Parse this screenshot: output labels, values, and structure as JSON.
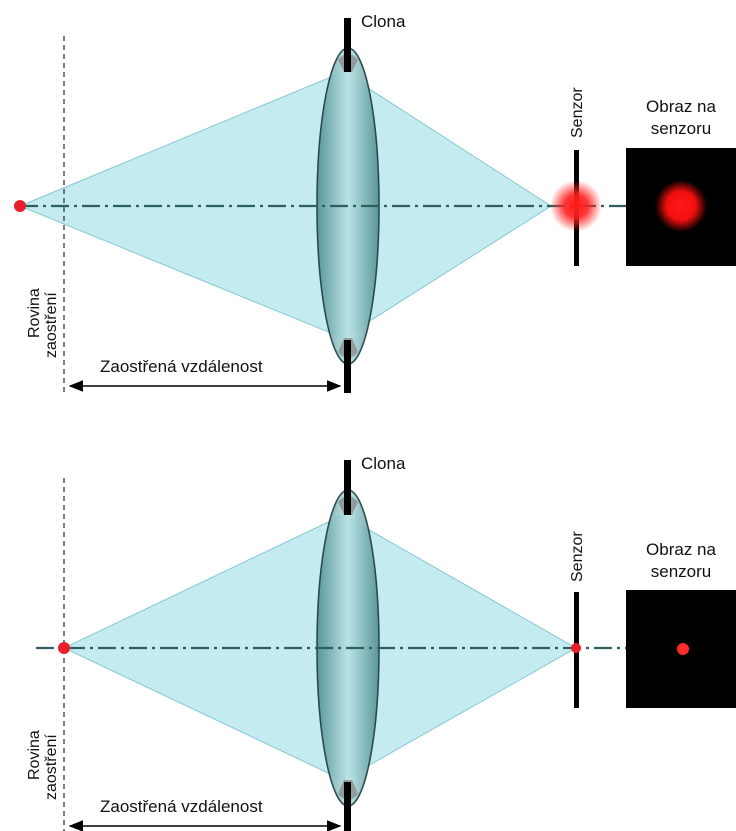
{
  "colors": {
    "cone_fill": "#c4ecf0",
    "cone_edge": "#86c9cf",
    "lens_body": "#6fa9ac",
    "lens_edge": "#1a3a3c",
    "axis_line": "#2d5e60",
    "point_red": "#e8202a",
    "sensor_image_bg": "#000000",
    "aperture": "#000000"
  },
  "panels": [
    {
      "name": "out-of-focus",
      "aperture_label": "Clona",
      "sensor_label": "Senzor",
      "sensor_image_label_line1": "Obraz na",
      "sensor_image_label_line2": "senzoru",
      "focus_plane_label_line1": "Rovina",
      "focus_plane_label_line2": "zaostření",
      "distance_label": "Zaostřená vzdálenost",
      "spot": "blurred"
    },
    {
      "name": "in-focus",
      "aperture_label": "Clona",
      "sensor_label": "Senzor",
      "sensor_image_label_line1": "Obraz na",
      "sensor_image_label_line2": "senzoru",
      "focus_plane_label_line1": "Rovina",
      "focus_plane_label_line2": "zaostření",
      "distance_label": "Zaostřená vzdálenost",
      "spot": "sharp"
    }
  ]
}
